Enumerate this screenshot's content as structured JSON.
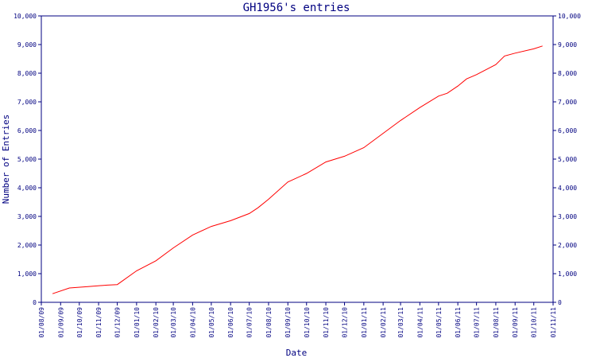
{
  "chart_data": {
    "type": "line",
    "title": "GH1956's entries",
    "xlabel": "Date",
    "ylabel": "Number of Entries",
    "ylim": [
      0,
      10000
    ],
    "yticks": [
      0,
      1000,
      2000,
      3000,
      4000,
      5000,
      6000,
      7000,
      8000,
      9000,
      10000
    ],
    "ytick_labels": [
      "0",
      "1,000",
      "2,000",
      "3,000",
      "4,000",
      "5,000",
      "6,000",
      "7,000",
      "8,000",
      "9,000",
      "10,000"
    ],
    "xlim": [
      "2009-08-01",
      "2011-11-01"
    ],
    "xtick_labels": [
      "01/08/09",
      "01/09/09",
      "01/10/09",
      "01/11/09",
      "01/12/09",
      "01/01/10",
      "01/02/10",
      "01/03/10",
      "01/04/10",
      "01/05/10",
      "01/06/10",
      "01/07/10",
      "01/08/10",
      "01/09/10",
      "01/10/10",
      "01/11/10",
      "01/12/10",
      "01/01/11",
      "01/02/11",
      "01/03/11",
      "01/04/11",
      "01/05/11",
      "01/06/11",
      "01/07/11",
      "01/08/11",
      "01/09/11",
      "01/10/11",
      "01/11/11"
    ],
    "xtick_dates": [
      "2009-08-01",
      "2009-09-01",
      "2009-10-01",
      "2009-11-01",
      "2009-12-01",
      "2010-01-01",
      "2010-02-01",
      "2010-03-01",
      "2010-04-01",
      "2010-05-01",
      "2010-06-01",
      "2010-07-01",
      "2010-08-01",
      "2010-09-01",
      "2010-10-01",
      "2010-11-01",
      "2010-12-01",
      "2011-01-01",
      "2011-02-01",
      "2011-03-01",
      "2011-04-01",
      "2011-05-01",
      "2011-06-01",
      "2011-07-01",
      "2011-08-01",
      "2011-09-01",
      "2011-10-01",
      "2011-11-01"
    ],
    "axes_on_both_sides": true,
    "grid": false,
    "series": [
      {
        "color": "#ff0000",
        "x": [
          "2009-08-19",
          "2009-09-15",
          "2009-10-15",
          "2009-11-15",
          "2009-12-01",
          "2010-01-01",
          "2010-02-01",
          "2010-03-01",
          "2010-04-01",
          "2010-05-01",
          "2010-06-01",
          "2010-07-01",
          "2010-07-15",
          "2010-08-01",
          "2010-09-01",
          "2010-10-01",
          "2010-11-01",
          "2010-12-01",
          "2011-01-01",
          "2011-02-01",
          "2011-03-01",
          "2011-04-01",
          "2011-05-01",
          "2011-05-15",
          "2011-06-01",
          "2011-06-15",
          "2011-07-01",
          "2011-08-01",
          "2011-08-15",
          "2011-09-01",
          "2011-10-01",
          "2011-10-15"
        ],
        "y": [
          300,
          500,
          550,
          600,
          620,
          1100,
          1450,
          1900,
          2350,
          2650,
          2850,
          3100,
          3300,
          3600,
          4200,
          4500,
          4900,
          5100,
          5400,
          5900,
          6350,
          6800,
          7200,
          7300,
          7550,
          7800,
          7950,
          8300,
          8600,
          8700,
          8850,
          8950
        ]
      }
    ]
  }
}
